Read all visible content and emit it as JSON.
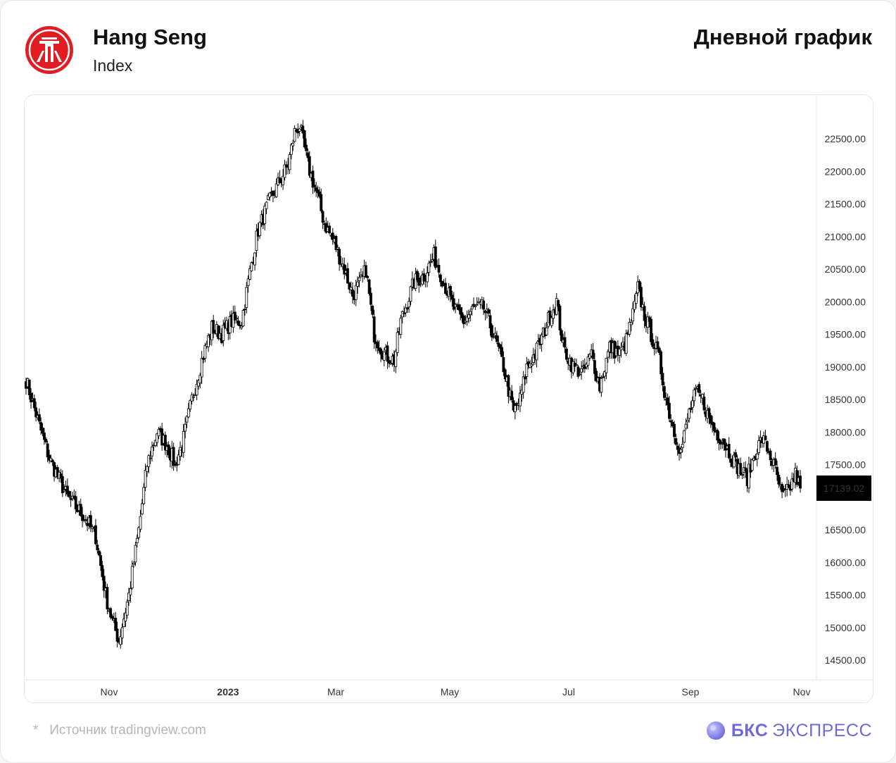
{
  "header": {
    "title": "Hang Seng",
    "subtitle": "Index",
    "chart_type_label": "Дневной график"
  },
  "footer": {
    "source_asterisk": "*",
    "source_text": "Источник tradingview.com",
    "brand_bold": "БКС",
    "brand_rest": "ЭКСПРЕСС"
  },
  "colors": {
    "logo_red": "#e11d23",
    "brand_purple": "#6c6ad8",
    "candle": "#000000",
    "background": "#ffffff"
  },
  "chart_data": {
    "type": "candlestick",
    "title": "",
    "xlabel": "",
    "ylabel": "",
    "ylim": [
      14150,
      23200
    ],
    "y_ticks": [
      "22500.00",
      "22000.00",
      "21500.00",
      "21000.00",
      "20500.00",
      "20000.00",
      "19500.00",
      "19000.00",
      "18500.00",
      "18000.00",
      "17500.00",
      "16500.00",
      "16000.00",
      "15500.00",
      "15000.00",
      "14500.00"
    ],
    "x_ticks": [
      "Nov",
      "2023",
      "Mar",
      "May",
      "Jul",
      "Sep",
      "Nov"
    ],
    "last_price_label": "17139.02",
    "last_price": 17139.02,
    "trend": [
      [
        0,
        18800
      ],
      [
        8,
        18100
      ],
      [
        14,
        17600
      ],
      [
        25,
        17000
      ],
      [
        35,
        16700
      ],
      [
        42,
        16400
      ],
      [
        48,
        15500
      ],
      [
        52,
        15100
      ],
      [
        56,
        14800
      ],
      [
        62,
        15500
      ],
      [
        68,
        16500
      ],
      [
        73,
        17500
      ],
      [
        79,
        18000
      ],
      [
        85,
        17800
      ],
      [
        90,
        17500
      ],
      [
        95,
        17900
      ],
      [
        100,
        18500
      ],
      [
        106,
        19100
      ],
      [
        112,
        19600
      ],
      [
        118,
        19500
      ],
      [
        124,
        19700
      ],
      [
        130,
        19700
      ],
      [
        136,
        20600
      ],
      [
        140,
        21100
      ],
      [
        146,
        21500
      ],
      [
        152,
        21800
      ],
      [
        158,
        22100
      ],
      [
        162,
        22600
      ],
      [
        165,
        22700
      ],
      [
        170,
        22100
      ],
      [
        176,
        21600
      ],
      [
        180,
        21200
      ],
      [
        186,
        20900
      ],
      [
        192,
        20500
      ],
      [
        197,
        20100
      ],
      [
        202,
        20300
      ],
      [
        205,
        20500
      ],
      [
        210,
        19500
      ],
      [
        216,
        19200
      ],
      [
        222,
        19100
      ],
      [
        226,
        19700
      ],
      [
        230,
        20000
      ],
      [
        234,
        20300
      ],
      [
        240,
        20400
      ],
      [
        246,
        20700
      ],
      [
        252,
        20300
      ],
      [
        258,
        19900
      ],
      [
        264,
        19700
      ],
      [
        270,
        19900
      ],
      [
        276,
        19900
      ],
      [
        282,
        19500
      ],
      [
        288,
        19000
      ],
      [
        294,
        18300
      ],
      [
        298,
        18500
      ],
      [
        302,
        19000
      ],
      [
        307,
        19200
      ],
      [
        312,
        19500
      ],
      [
        316,
        19800
      ],
      [
        320,
        20000
      ],
      [
        324,
        19300
      ],
      [
        330,
        19000
      ],
      [
        336,
        18900
      ],
      [
        341,
        19200
      ],
      [
        346,
        18700
      ],
      [
        352,
        19300
      ],
      [
        358,
        19200
      ],
      [
        362,
        19400
      ],
      [
        366,
        19800
      ],
      [
        369,
        20200
      ],
      [
        373,
        19800
      ],
      [
        377,
        19500
      ],
      [
        382,
        19100
      ],
      [
        386,
        18500
      ],
      [
        391,
        18000
      ],
      [
        395,
        17700
      ],
      [
        400,
        18300
      ],
      [
        404,
        18600
      ],
      [
        408,
        18500
      ],
      [
        412,
        18200
      ],
      [
        416,
        18000
      ],
      [
        420,
        17900
      ],
      [
        426,
        17600
      ],
      [
        431,
        17400
      ],
      [
        435,
        17300
      ],
      [
        440,
        17700
      ],
      [
        444,
        17900
      ],
      [
        448,
        17700
      ],
      [
        452,
        17400
      ],
      [
        456,
        17000
      ],
      [
        460,
        17100
      ],
      [
        464,
        17350
      ],
      [
        467,
        17140
      ]
    ]
  }
}
